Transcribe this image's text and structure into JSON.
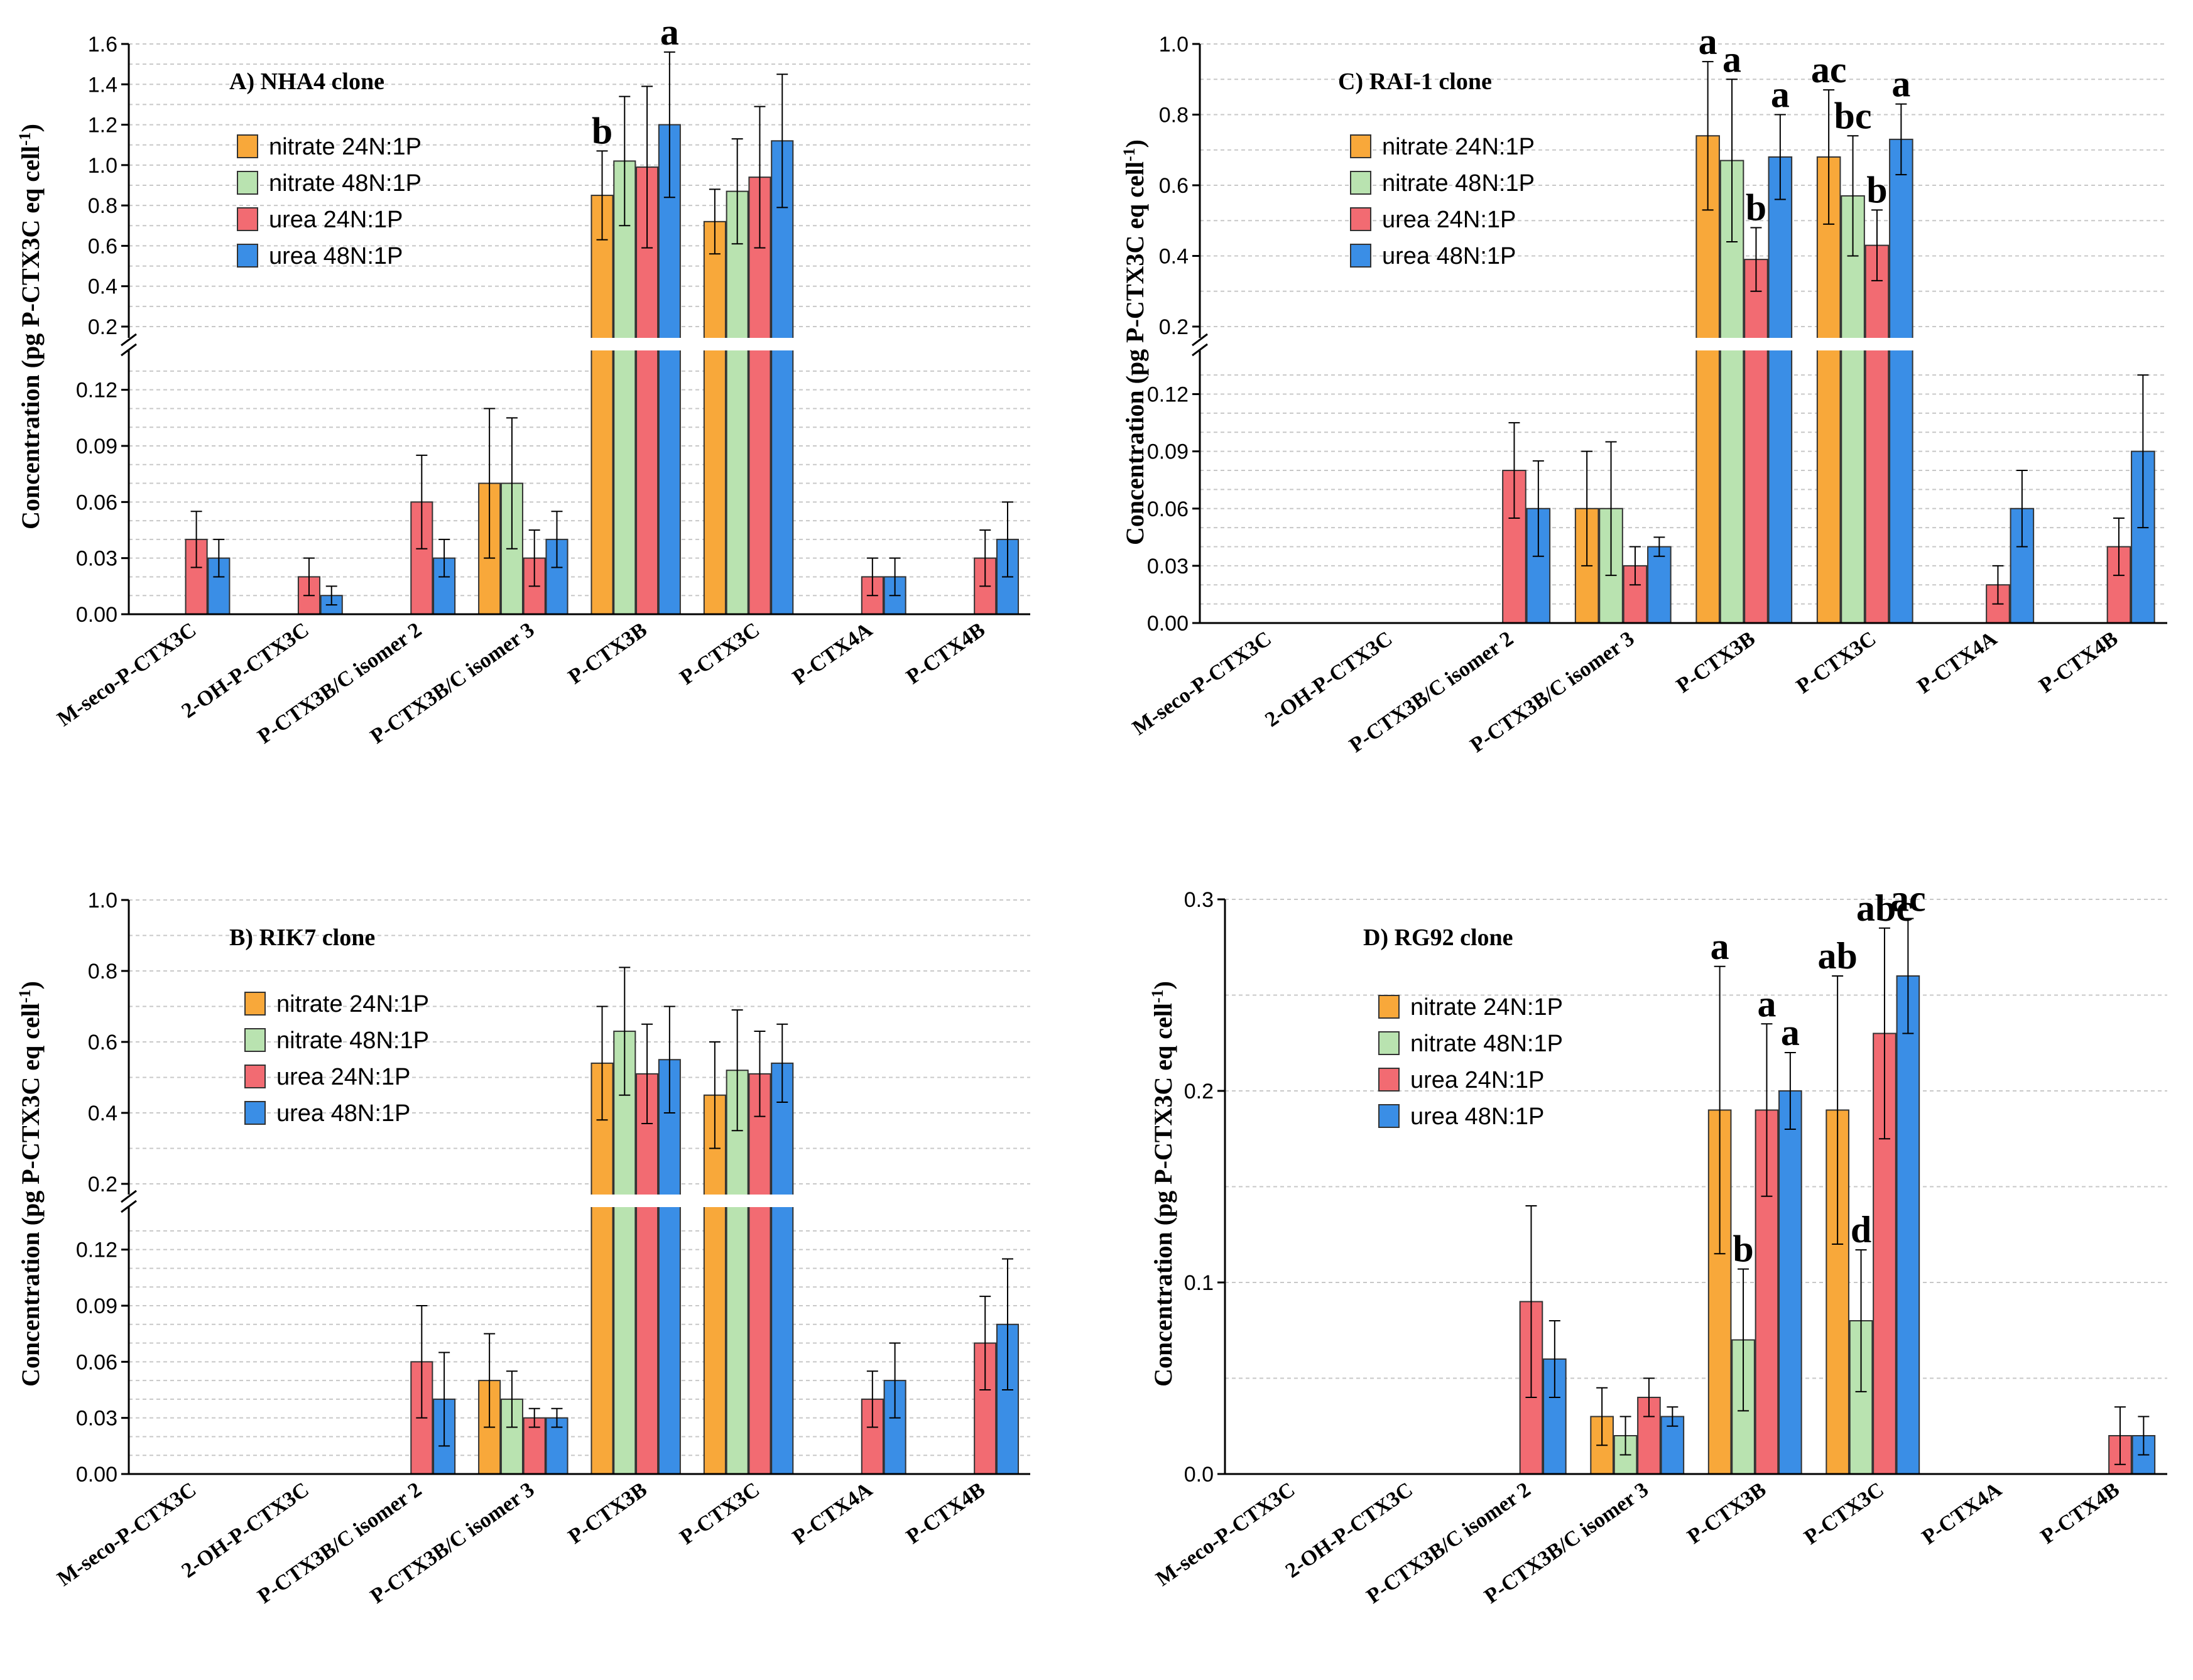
{
  "colors": {
    "nitrate24": "#F8A83A",
    "nitrate48": "#B9E3B0",
    "urea24": "#F26B72",
    "urea48": "#3A8EE6"
  },
  "y_axis_label": "Concentration (pg P-CTX3C eq cell",
  "y_axis_label_sup": "-1",
  "y_axis_label_end": ")",
  "chart_data": [
    {
      "id": "A",
      "type": "bar",
      "title": "A) NHA4 clone",
      "categories": [
        "M-seco-P-CTX3C",
        "2-OH-P-CTX3C",
        "P-CTX3B/C isomer 2",
        "P-CTX3B/C isomer 3",
        "P-CTX3B",
        "P-CTX3C",
        "P-CTX4A",
        "P-CTX4B"
      ],
      "broken_axis": true,
      "lower_ylim": [
        0,
        0.135
      ],
      "lower_ticks": [
        "0.00",
        "0.03",
        "0.06",
        "0.09",
        "0.12"
      ],
      "upper_ylim": [
        0.2,
        1.6
      ],
      "upper_ticks": [
        "0.2",
        "0.4",
        "0.6",
        "0.8",
        "1.0",
        "1.2",
        "1.4",
        "1.6"
      ],
      "series": [
        {
          "name": "nitrate 24N:1P",
          "color": "nitrate24",
          "values": [
            null,
            null,
            null,
            0.07,
            0.85,
            0.72,
            null,
            null
          ],
          "errors": [
            null,
            null,
            null,
            0.04,
            0.22,
            0.16,
            null,
            null
          ]
        },
        {
          "name": "nitrate 48N:1P",
          "color": "nitrate48",
          "values": [
            null,
            null,
            null,
            0.07,
            1.02,
            0.87,
            null,
            null
          ],
          "errors": [
            null,
            null,
            null,
            0.035,
            0.32,
            0.26,
            null,
            null
          ]
        },
        {
          "name": "urea 24N:1P",
          "color": "urea24",
          "values": [
            0.04,
            0.02,
            0.06,
            0.03,
            0.99,
            0.94,
            0.02,
            0.03
          ],
          "errors": [
            0.015,
            0.01,
            0.025,
            0.015,
            0.4,
            0.35,
            0.01,
            0.015
          ]
        },
        {
          "name": "urea 48N:1P",
          "color": "urea48",
          "values": [
            0.03,
            0.01,
            0.03,
            0.04,
            1.2,
            1.12,
            0.02,
            0.04
          ],
          "errors": [
            0.01,
            0.005,
            0.01,
            0.015,
            0.36,
            0.33,
            0.01,
            0.02
          ]
        }
      ],
      "annotations": [
        {
          "cat": 4,
          "series": 0,
          "text": "b"
        },
        {
          "cat": 4,
          "series": 3,
          "text": "a"
        }
      ]
    },
    {
      "id": "C",
      "type": "bar",
      "title": "C) RAI-1 clone",
      "categories": [
        "M-seco-P-CTX3C",
        "2-OH-P-CTX3C",
        "P-CTX3B/C isomer 2",
        "P-CTX3B/C isomer 3",
        "P-CTX3B",
        "P-CTX3C",
        "P-CTX4A",
        "P-CTX4B"
      ],
      "broken_axis": true,
      "lower_ylim": [
        0,
        0.135
      ],
      "lower_ticks": [
        "0.00",
        "0.03",
        "0.06",
        "0.09",
        "0.12"
      ],
      "upper_ylim": [
        0.2,
        1.0
      ],
      "upper_ticks": [
        "0.2",
        "0.4",
        "0.6",
        "0.8",
        "1.0"
      ],
      "series": [
        {
          "name": "nitrate 24N:1P",
          "color": "nitrate24",
          "values": [
            null,
            null,
            null,
            0.06,
            0.74,
            0.68,
            null,
            null
          ],
          "errors": [
            null,
            null,
            null,
            0.03,
            0.21,
            0.19,
            null,
            null
          ]
        },
        {
          "name": "nitrate 48N:1P",
          "color": "nitrate48",
          "values": [
            null,
            null,
            null,
            0.06,
            0.67,
            0.57,
            null,
            null
          ],
          "errors": [
            null,
            null,
            null,
            0.035,
            0.23,
            0.17,
            null,
            null
          ]
        },
        {
          "name": "urea 24N:1P",
          "color": "urea24",
          "values": [
            null,
            null,
            0.08,
            0.03,
            0.39,
            0.43,
            0.02,
            0.04
          ],
          "errors": [
            null,
            null,
            0.025,
            0.01,
            0.09,
            0.1,
            0.01,
            0.015
          ]
        },
        {
          "name": "urea 48N:1P",
          "color": "urea48",
          "values": [
            null,
            null,
            0.06,
            0.04,
            0.68,
            0.73,
            0.06,
            0.09
          ],
          "errors": [
            null,
            null,
            0.025,
            0.005,
            0.12,
            0.1,
            0.02,
            0.04
          ]
        }
      ],
      "annotations": [
        {
          "cat": 4,
          "series": 0,
          "text": "a"
        },
        {
          "cat": 4,
          "series": 1,
          "text": "a"
        },
        {
          "cat": 4,
          "series": 2,
          "text": "b"
        },
        {
          "cat": 4,
          "series": 3,
          "text": "a"
        },
        {
          "cat": 5,
          "series": 0,
          "text": "ac"
        },
        {
          "cat": 5,
          "series": 1,
          "text": "bc"
        },
        {
          "cat": 5,
          "series": 2,
          "text": "b"
        },
        {
          "cat": 5,
          "series": 3,
          "text": "a"
        }
      ]
    },
    {
      "id": "B",
      "type": "bar",
      "title": "B) RIK7 clone",
      "categories": [
        "M-seco-P-CTX3C",
        "2-OH-P-CTX3C",
        "P-CTX3B/C isomer 2",
        "P-CTX3B/C isomer 3",
        "P-CTX3B",
        "P-CTX3C",
        "P-CTX4A",
        "P-CTX4B"
      ],
      "broken_axis": true,
      "lower_ylim": [
        0,
        0.135
      ],
      "lower_ticks": [
        "0.00",
        "0.03",
        "0.06",
        "0.09",
        "0.12"
      ],
      "upper_ylim": [
        0.2,
        1.0
      ],
      "upper_ticks": [
        "0.2",
        "0.4",
        "0.6",
        "0.8",
        "1.0"
      ],
      "series": [
        {
          "name": "nitrate 24N:1P",
          "color": "nitrate24",
          "values": [
            null,
            null,
            null,
            0.05,
            0.54,
            0.45,
            null,
            null
          ],
          "errors": [
            null,
            null,
            null,
            0.025,
            0.16,
            0.15,
            null,
            null
          ]
        },
        {
          "name": "nitrate 48N:1P",
          "color": "nitrate48",
          "values": [
            null,
            null,
            null,
            0.04,
            0.63,
            0.52,
            null,
            null
          ],
          "errors": [
            null,
            null,
            null,
            0.015,
            0.18,
            0.17,
            null,
            null
          ]
        },
        {
          "name": "urea 24N:1P",
          "color": "urea24",
          "values": [
            null,
            null,
            0.06,
            0.03,
            0.51,
            0.51,
            0.04,
            0.07
          ],
          "errors": [
            null,
            null,
            0.03,
            0.005,
            0.14,
            0.12,
            0.015,
            0.025
          ]
        },
        {
          "name": "urea 48N:1P",
          "color": "urea48",
          "values": [
            null,
            null,
            0.04,
            0.03,
            0.55,
            0.54,
            0.05,
            0.08
          ],
          "errors": [
            null,
            null,
            0.025,
            0.005,
            0.15,
            0.11,
            0.02,
            0.035
          ]
        }
      ],
      "annotations": []
    },
    {
      "id": "D",
      "type": "bar",
      "title": "D) RG92 clone",
      "categories": [
        "M-seco-P-CTX3C",
        "2-OH-P-CTX3C",
        "P-CTX3B/C isomer 2",
        "P-CTX3B/C isomer 3",
        "P-CTX3B",
        "P-CTX3C",
        "P-CTX4A",
        "P-CTX4B"
      ],
      "broken_axis": false,
      "ylim": [
        0,
        0.3
      ],
      "ticks": [
        "0.0",
        "0.1",
        "0.2",
        "0.3"
      ],
      "series": [
        {
          "name": "nitrate 24N:1P",
          "color": "nitrate24",
          "values": [
            null,
            null,
            null,
            0.03,
            0.19,
            0.19,
            null,
            null
          ],
          "errors": [
            null,
            null,
            null,
            0.015,
            0.075,
            0.07,
            null,
            null
          ]
        },
        {
          "name": "nitrate 48N:1P",
          "color": "nitrate48",
          "values": [
            null,
            null,
            null,
            0.02,
            0.07,
            0.08,
            null,
            null
          ],
          "errors": [
            null,
            null,
            null,
            0.01,
            0.037,
            0.037,
            null,
            null
          ]
        },
        {
          "name": "urea 24N:1P",
          "color": "urea24",
          "values": [
            null,
            null,
            0.09,
            0.04,
            0.19,
            0.23,
            null,
            0.02
          ],
          "errors": [
            null,
            null,
            0.05,
            0.01,
            0.045,
            0.055,
            null,
            0.015
          ]
        },
        {
          "name": "urea 48N:1P",
          "color": "urea48",
          "values": [
            null,
            null,
            0.06,
            0.03,
            0.2,
            0.26,
            null,
            0.02
          ],
          "errors": [
            null,
            null,
            0.02,
            0.005,
            0.02,
            0.03,
            null,
            0.01
          ]
        }
      ],
      "annotations": [
        {
          "cat": 4,
          "series": 0,
          "text": "a"
        },
        {
          "cat": 4,
          "series": 1,
          "text": "b"
        },
        {
          "cat": 4,
          "series": 2,
          "text": "a"
        },
        {
          "cat": 4,
          "series": 3,
          "text": "a"
        },
        {
          "cat": 5,
          "series": 0,
          "text": "ab"
        },
        {
          "cat": 5,
          "series": 1,
          "text": "d"
        },
        {
          "cat": 5,
          "series": 2,
          "text": "abc"
        },
        {
          "cat": 5,
          "series": 3,
          "text": "ac"
        }
      ]
    }
  ]
}
